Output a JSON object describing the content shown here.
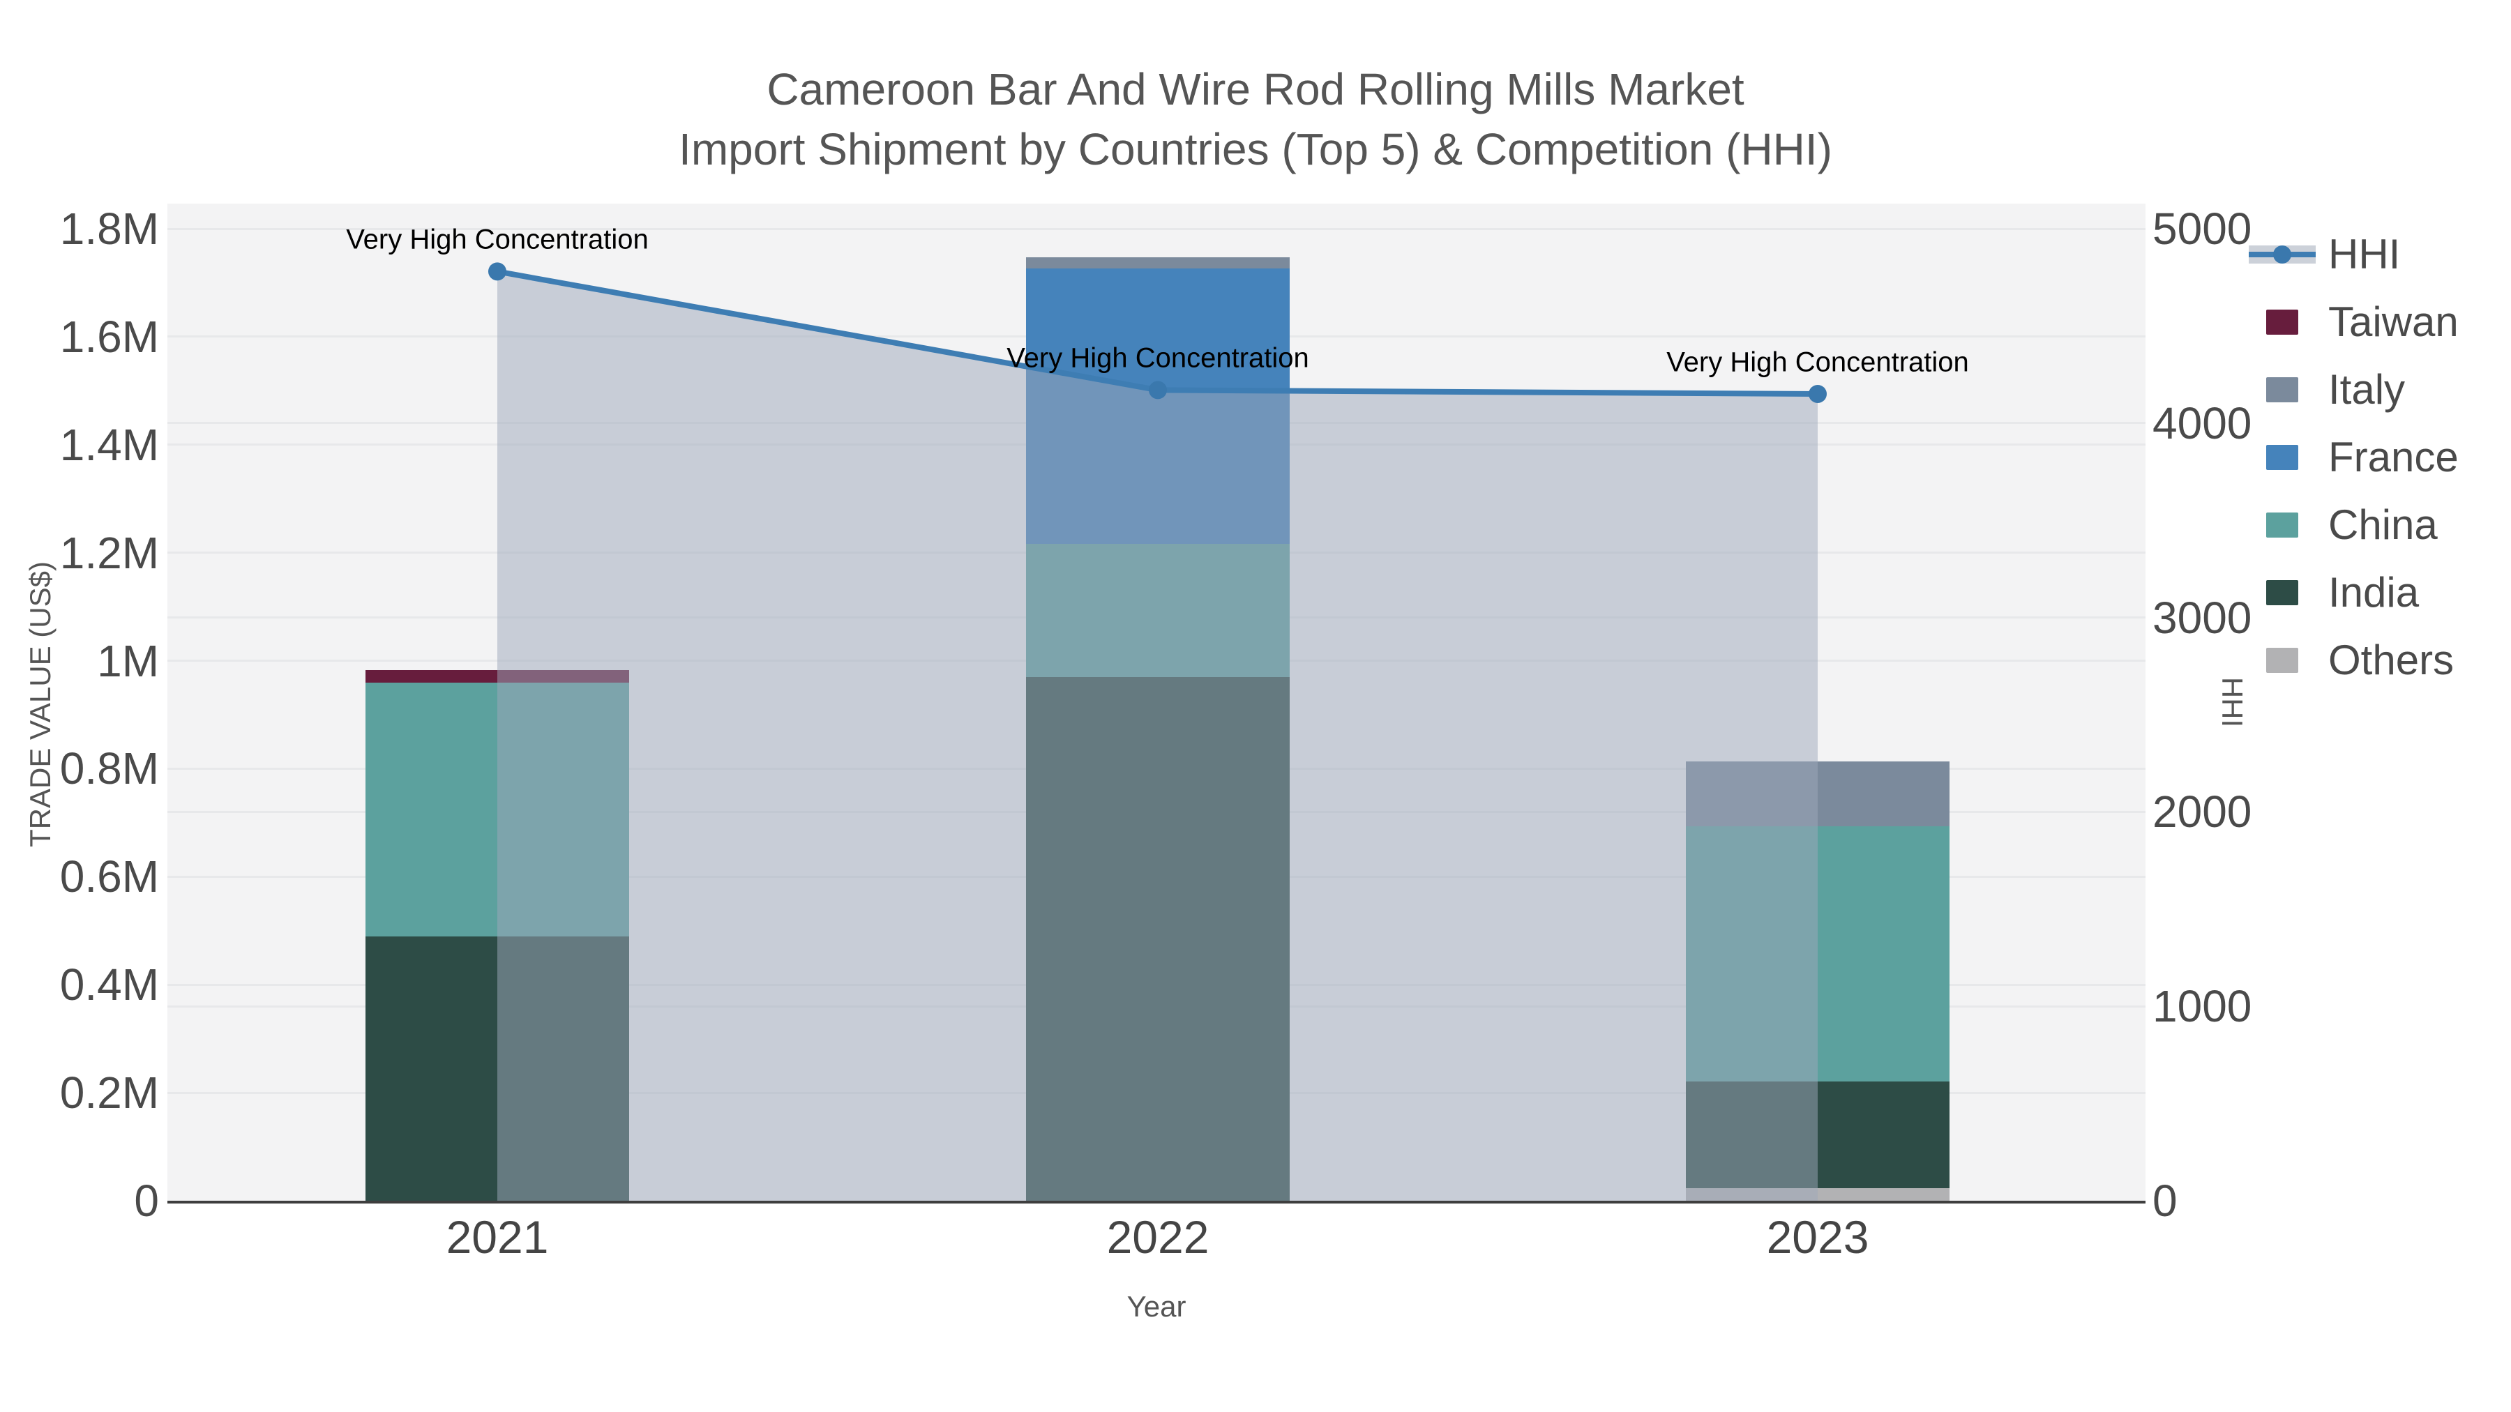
{
  "title": {
    "line1": "Cameroon Bar And Wire Rod Rolling Mills Market",
    "line2": "Import Shipment by Countries (Top 5) & Competition (HHI)"
  },
  "colors": {
    "plot_bg": "#f3f3f4",
    "grid": "#e7e8ea",
    "axis_line": "#3e3e3e",
    "title": "#555555",
    "tick": "#4a4a4a",
    "annotation": "#000000"
  },
  "chart_data": {
    "type": "bar+line",
    "title": "Cameroon Bar And Wire Rod Rolling Mills Market Import Shipment by Countries (Top 5) & Competition (HHI)",
    "xlabel": "Year",
    "ylabel": "TRADE VALUE (US$)",
    "y2label": "HHI",
    "categories": [
      "2021",
      "2022",
      "2023"
    ],
    "ylim": [
      0,
      1800000
    ],
    "y2lim": [
      0,
      5000
    ],
    "grid": true,
    "legend_position": "right",
    "y_left_ticks": [
      {
        "label": "0",
        "value": 0
      },
      {
        "label": "0.2M",
        "value": 200000
      },
      {
        "label": "0.4M",
        "value": 400000
      },
      {
        "label": "0.6M",
        "value": 600000
      },
      {
        "label": "0.8M",
        "value": 800000
      },
      {
        "label": "1M",
        "value": 1000000
      },
      {
        "label": "1.2M",
        "value": 1200000
      },
      {
        "label": "1.4M",
        "value": 1400000
      },
      {
        "label": "1.6M",
        "value": 1600000
      },
      {
        "label": "1.8M",
        "value": 1800000
      }
    ],
    "y_right_ticks": [
      {
        "label": "0",
        "value": 0
      },
      {
        "label": "1000",
        "value": 1000
      },
      {
        "label": "2000",
        "value": 2000
      },
      {
        "label": "3000",
        "value": 3000
      },
      {
        "label": "4000",
        "value": 4000
      },
      {
        "label": "5000",
        "value": 5000
      }
    ],
    "bar_series": [
      {
        "name": "Taiwan",
        "color": "#671d3d",
        "values": [
          22000,
          0,
          0
        ]
      },
      {
        "name": "Italy",
        "color": "#7b8a9c",
        "values": [
          0,
          20000,
          119000
        ]
      },
      {
        "name": "France",
        "color": "#4583bb",
        "values": [
          0,
          511000,
          0
        ]
      },
      {
        "name": "China",
        "color": "#5ca19e",
        "values": [
          470000,
          246000,
          473000
        ]
      },
      {
        "name": "India",
        "color": "#2d4c46",
        "values": [
          490000,
          970000,
          198000
        ]
      },
      {
        "name": "Others",
        "color": "#b2b2b4",
        "values": [
          0,
          0,
          23000
        ]
      }
    ],
    "stack_order_bottom_to_top": [
      "Others",
      "India",
      "China",
      "France",
      "Italy",
      "Taiwan"
    ],
    "hhi": {
      "name": "HHI",
      "axis": "right",
      "values": [
        4780,
        4170,
        4150
      ],
      "line_color": "#3e7db3",
      "marker_color": "#3a78ad",
      "area_fill": "rgba(158,167,185,0.5)"
    },
    "annotations": [
      {
        "text": "Very High Concentration",
        "x": "2021"
      },
      {
        "text": "Very High Concentration",
        "x": "2022"
      },
      {
        "text": "Very High Concentration",
        "x": "2023"
      }
    ],
    "legend_order": [
      "HHI",
      "Taiwan",
      "Italy",
      "France",
      "China",
      "India",
      "Others"
    ]
  }
}
